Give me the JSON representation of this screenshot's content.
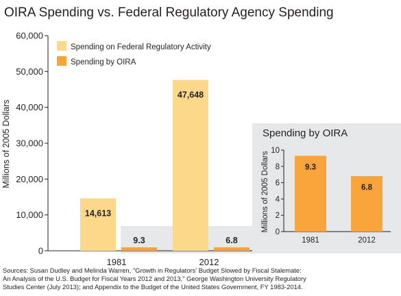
{
  "chart_data": [
    {
      "type": "bar",
      "title": "OIRA Spending vs. Federal Regulatory Agency Spending",
      "xlabel": "",
      "ylabel": "Millions of 2005 Dollars",
      "ylim": [
        0,
        60000
      ],
      "yticks": [
        "0",
        "10,000",
        "20,000",
        "30,000",
        "40,000",
        "50,000",
        "60,000"
      ],
      "ytick_values": [
        0,
        10000,
        20000,
        30000,
        40000,
        50000,
        60000
      ],
      "categories": [
        "1981",
        "2012"
      ],
      "series": [
        {
          "name": "Spending on Federal Regulatory Activity",
          "values": [
            14613,
            47648
          ],
          "labels": [
            "14,613",
            "47,648"
          ],
          "color": "#fcd98a"
        },
        {
          "name": "Spending by OIRA",
          "values": [
            9.3,
            6.8
          ],
          "labels": [
            "9.3",
            "6.8"
          ],
          "color": "#f8a43b"
        }
      ],
      "legend": "top-left",
      "grid": false
    },
    {
      "type": "bar",
      "title": "Spending by OIRA",
      "xlabel": "",
      "ylabel": "Millions of  2005 Dollars",
      "ylim": [
        0,
        10
      ],
      "yticks": [
        "0",
        "2",
        "4",
        "6",
        "8",
        "10"
      ],
      "ytick_values": [
        0,
        2,
        4,
        6,
        8,
        10
      ],
      "categories": [
        "1981",
        "2012"
      ],
      "values": [
        9.3,
        6.8
      ],
      "labels": [
        "9.3",
        "6.8"
      ],
      "color": "#f8a43b",
      "grid": false
    }
  ],
  "source_lines": [
    "Sources: Susan Dudley and Melinda Warren, \"Growth in Regulators' Budget Slowed by Fiscal Stalemate:",
    "An Analysis of the U.S. Budget for Fiscal Years 2012  and 2013,\" George Washington  University Regulatory",
    "Studies Center (July 2013);  and Appendix  to the Budget of the United States  Government, FY 1983-2014."
  ],
  "colors": {
    "panel": "#e6e7e8",
    "axis": "#231f20",
    "text": "#231f20"
  }
}
